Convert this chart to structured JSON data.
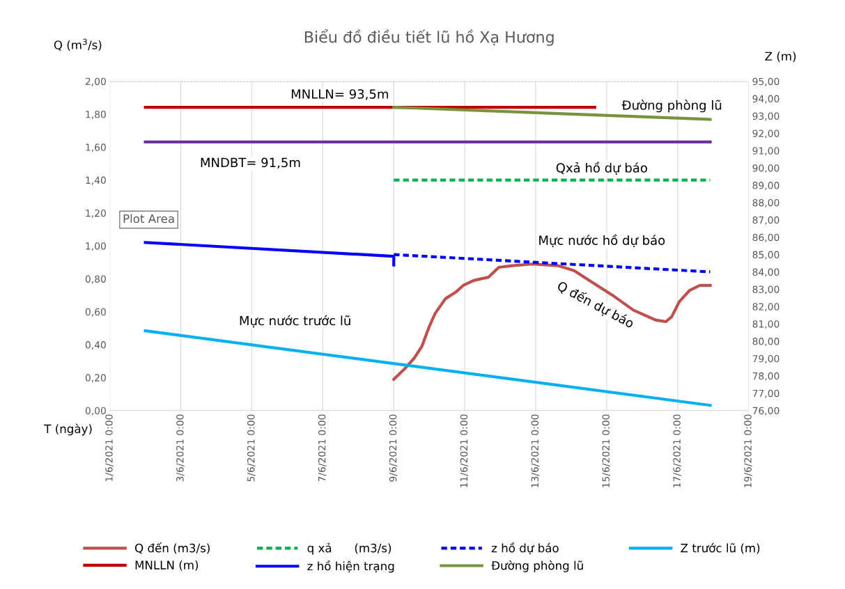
{
  "chart_data": {
    "type": "line",
    "title": "Biểu đồ điều tiết lũ hồ Xạ Hương",
    "xlabel": "T (ngày)",
    "ylabel": "Q (m$^{3}$/s)",
    "y2label": "Z (m)",
    "xlim": [
      "2021-06-01",
      "2021-06-19"
    ],
    "xticks": [
      {
        "value": "2021-06-01",
        "label": "1/6/2021 0:00"
      },
      {
        "value": "2021-06-03",
        "label": "3/6/2021 0:00"
      },
      {
        "value": "2021-06-05",
        "label": "5/6/2021 0:00"
      },
      {
        "value": "2021-06-07",
        "label": "7/6/2021 0:00"
      },
      {
        "value": "2021-06-09",
        "label": "9/6/2021 0:00"
      },
      {
        "value": "2021-06-11",
        "label": "11/6/2021 0:00"
      },
      {
        "value": "2021-06-13",
        "label": "13/6/2021 0:00"
      },
      {
        "value": "2021-06-15",
        "label": "15/6/2021 0:00"
      },
      {
        "value": "2021-06-17",
        "label": "17/6/2021 0:00"
      },
      {
        "value": "2021-06-19",
        "label": "19/6/2021 0:00"
      }
    ],
    "ylim": [
      0,
      2
    ],
    "yticks": [
      {
        "value": 0,
        "label": "0,00"
      },
      {
        "value": 0.2,
        "label": "0,20"
      },
      {
        "value": 0.4,
        "label": "0,40"
      },
      {
        "value": 0.6,
        "label": "0,60"
      },
      {
        "value": 0.8,
        "label": "0,80"
      },
      {
        "value": 1.0,
        "label": "1,00"
      },
      {
        "value": 1.2,
        "label": "1,20"
      },
      {
        "value": 1.4,
        "label": "1,40"
      },
      {
        "value": 1.6,
        "label": "1,60"
      },
      {
        "value": 1.8,
        "label": "1,80"
      },
      {
        "value": 2.0,
        "label": "2,00"
      }
    ],
    "y2lim": [
      76,
      95
    ],
    "y2ticks": [
      {
        "value": 76,
        "label": "76,00"
      },
      {
        "value": 77,
        "label": "77,00"
      },
      {
        "value": 78,
        "label": "78,00"
      },
      {
        "value": 79,
        "label": "79,00"
      },
      {
        "value": 80,
        "label": "80,00"
      },
      {
        "value": 81,
        "label": "81,00"
      },
      {
        "value": 82,
        "label": "82,00"
      },
      {
        "value": 83,
        "label": "83,00"
      },
      {
        "value": 84,
        "label": "84,00"
      },
      {
        "value": 85,
        "label": "85,00"
      },
      {
        "value": 86,
        "label": "86,00"
      },
      {
        "value": 87,
        "label": "87,00"
      },
      {
        "value": 88,
        "label": "88,00"
      },
      {
        "value": 89,
        "label": "89,00"
      },
      {
        "value": 90,
        "label": "90,00"
      },
      {
        "value": 91,
        "label": "91,00"
      },
      {
        "value": 92,
        "label": "92,00"
      },
      {
        "value": 93,
        "label": "93,00"
      },
      {
        "value": 94,
        "label": "94,00"
      },
      {
        "value": 95,
        "label": "95,00"
      }
    ],
    "grid": "x",
    "legend": "bottom",
    "series": [
      {
        "name": "Q đến (m3/s)",
        "color": "#c0504d",
        "x": [
          "2021-06-09T00:00",
          "2021-06-09T07:00",
          "2021-06-09T14:00",
          "2021-06-09T19:00",
          "2021-06-10T00:00",
          "2021-06-10T04:00",
          "2021-06-10T11:00",
          "2021-06-10T18:00",
          "2021-06-10T23:00",
          "2021-06-11T06:00",
          "2021-06-11T16:00",
          "2021-06-11T23:00",
          "2021-06-12T08:00",
          "2021-06-12T22:00",
          "2021-06-13T15:00",
          "2021-06-14T02:00",
          "2021-06-14T14:00",
          "2021-06-15T04:00",
          "2021-06-15T18:00",
          "2021-06-16T09:00",
          "2021-06-16T16:00",
          "2021-06-16T20:00",
          "2021-06-17T01:00",
          "2021-06-17T08:00",
          "2021-06-17T15:00",
          "2021-06-17T22:00"
        ],
        "values": [
          0.19,
          0.25,
          0.32,
          0.39,
          0.51,
          0.59,
          0.68,
          0.72,
          0.76,
          0.79,
          0.81,
          0.87,
          0.88,
          0.89,
          0.88,
          0.85,
          0.78,
          0.7,
          0.61,
          0.55,
          0.54,
          0.57,
          0.66,
          0.73,
          0.76,
          0.76
        ]
      },
      {
        "name": "q xả      (m3/s)",
        "color": "#00b050",
        "line_style": "dashed",
        "x": [
          "2021-06-09T00:00",
          "2021-06-17T22:00"
        ],
        "values": [
          1.4,
          1.4
        ]
      },
      {
        "name": "z hồ dự báo",
        "color": "#0000ff",
        "line_style": "dashed",
        "axis": "y2",
        "x": [
          "2021-06-09T00:00",
          "2021-06-17T22:00"
        ],
        "values": [
          85.0,
          84.0
        ]
      },
      {
        "name": "Z trước lũ (m)",
        "color": "#00b0f0",
        "axis": "y2",
        "x": [
          "2021-06-02T00:00",
          "2021-06-17T22:00"
        ],
        "values": [
          80.6,
          76.3
        ]
      },
      {
        "name": "MNLLN (m)",
        "color": "#c00000",
        "axis": "y2",
        "x": [
          "2021-06-02T00:00",
          "2021-06-14T16:00"
        ],
        "values": [
          93.5,
          93.5
        ]
      },
      {
        "name": "z hồ hiện trạng",
        "color": "#0000ff",
        "axis": "y2",
        "x": [
          "2021-06-02T00:00",
          "2021-06-09T00:00",
          "2021-06-09T00:00"
        ],
        "values": [
          85.7,
          84.9,
          84.4
        ]
      },
      {
        "name": "Đường phòng lũ",
        "color": "#77933c",
        "axis": "y2",
        "x": [
          "2021-06-09T00:00",
          "2021-06-17T22:00"
        ],
        "values": [
          93.5,
          92.8
        ]
      },
      {
        "color": "#7030a0",
        "axis": "y2",
        "x": [
          "2021-06-02T00:00",
          "2021-06-17T22:00"
        ],
        "values": [
          91.5,
          91.5
        ]
      }
    ],
    "ref_lines": [
      {
        "axis": "y",
        "value": 2.0,
        "color": "#9999ff",
        "line_style": "dashed"
      }
    ],
    "annotations": [
      "MNLLN= 93,5m",
      "MNDBT= 91,5m",
      "Đường phòng lũ",
      "Qxả hồ dự báo",
      "Mực nước hồ dự báo",
      "Q đến dự báo",
      "Mực nước trước lũ",
      "Plot Area"
    ]
  }
}
